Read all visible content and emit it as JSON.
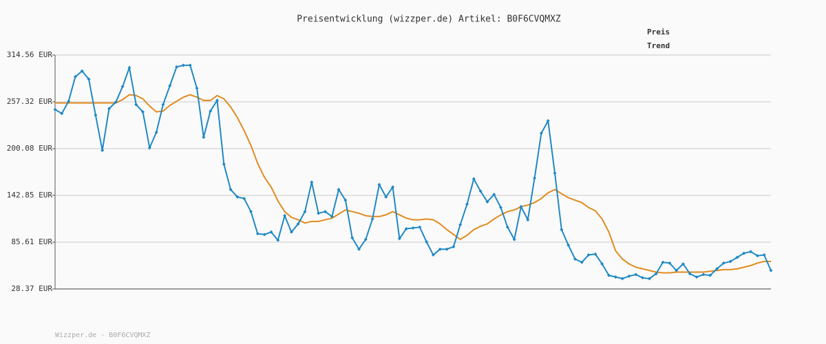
{
  "chart_data": {
    "type": "line",
    "title": "Preisentwicklung (wizzper.de) Artikel: B0F6CVQMXZ",
    "footer": "Wizzper.de - B0F6CVQMXZ",
    "categories": [
      null,
      null,
      null,
      null,
      null,
      null,
      null,
      null,
      null,
      null,
      null,
      null,
      null,
      null,
      null,
      null,
      null,
      null,
      null,
      null,
      null,
      null,
      null,
      null,
      null,
      null,
      null,
      null,
      null,
      null,
      null,
      null,
      null,
      null,
      null,
      null,
      null,
      null,
      null,
      null,
      null,
      null,
      null,
      null,
      null,
      null,
      null,
      null,
      null,
      null,
      null,
      null,
      null,
      null,
      null,
      null,
      null,
      null,
      null,
      null,
      null,
      null,
      null,
      null,
      null,
      null,
      null,
      null,
      null,
      null,
      null,
      null,
      null,
      null,
      null,
      null,
      null,
      null,
      null,
      null,
      null,
      null,
      null,
      null,
      null,
      null,
      null,
      null,
      null,
      null,
      null,
      null,
      null,
      null,
      null,
      null,
      null,
      null,
      null,
      null,
      null,
      null,
      null,
      null,
      null,
      null,
      null
    ],
    "series": [
      {
        "name": "Preis",
        "color": "#1f88c4",
        "markers": true,
        "values": [
          248,
          243,
          258,
          288,
          295,
          285,
          241,
          198,
          249,
          257,
          276,
          299,
          254,
          245,
          201,
          220,
          254,
          277,
          300,
          302,
          302,
          274,
          214,
          246,
          259,
          181,
          150,
          141,
          139,
          123,
          96,
          95,
          98,
          88,
          118,
          98,
          108,
          123,
          159,
          121,
          123,
          117,
          150,
          137,
          91,
          77,
          89,
          114,
          156,
          141,
          153,
          90,
          102,
          103,
          104,
          86,
          70,
          77,
          77,
          80,
          107,
          132,
          163,
          148,
          135,
          144,
          128,
          104,
          89,
          129,
          113,
          164,
          219,
          234,
          170,
          101,
          82,
          65,
          61,
          70,
          71,
          59,
          45,
          43,
          41,
          44,
          46,
          42,
          41,
          47,
          61,
          60,
          51,
          59,
          47,
          43,
          46,
          45,
          53,
          60,
          62,
          67,
          72,
          74,
          69,
          70,
          51
        ]
      },
      {
        "name": "Trend",
        "color": "#e08a1e",
        "markers": false,
        "values": [
          256,
          256,
          256,
          256,
          256,
          256,
          256,
          256,
          256,
          256,
          260,
          266,
          265,
          261,
          252,
          245,
          246,
          253,
          258,
          263,
          266,
          263,
          259,
          259,
          265,
          261,
          251,
          238,
          222,
          204,
          182,
          165,
          153,
          136,
          123,
          116,
          113,
          109,
          111,
          111,
          113,
          115,
          120,
          125,
          123,
          121,
          118,
          117,
          117,
          119,
          123,
          119,
          115,
          113,
          113,
          114,
          113,
          108,
          101,
          95,
          89,
          94,
          101,
          105,
          108,
          114,
          119,
          123,
          125,
          129,
          131,
          134,
          139,
          146,
          150,
          145,
          140,
          137,
          134,
          128,
          124,
          114,
          98,
          75,
          65,
          59,
          55,
          53,
          51,
          49,
          48,
          48,
          49,
          49,
          49,
          49,
          49,
          50,
          51,
          52,
          52,
          53,
          55,
          57,
          60,
          62,
          62
        ]
      }
    ],
    "ylim": [
      28.37,
      314.56
    ],
    "yticks": [
      {
        "value": 28.37,
        "label": "28.37 EUR"
      },
      {
        "value": 85.61,
        "label": "85.61 EUR"
      },
      {
        "value": 142.85,
        "label": "142.85 EUR"
      },
      {
        "value": 200.08,
        "label": "200.08 EUR"
      },
      {
        "value": 257.32,
        "label": "257.32 EUR"
      },
      {
        "value": 314.56,
        "label": "314.56 EUR"
      }
    ],
    "grid": true,
    "legend": "top-right"
  }
}
